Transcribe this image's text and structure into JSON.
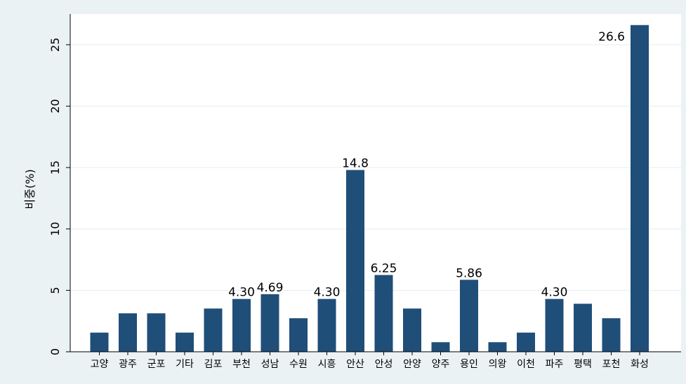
{
  "chart_data": {
    "type": "bar",
    "ylabel": "비중(%)",
    "xlabel": "",
    "title": "",
    "ylim": [
      0,
      27.5
    ],
    "yticks": [
      0,
      5,
      10,
      15,
      20,
      25
    ],
    "grid": true,
    "bar_color": "#1f4e79",
    "categories": [
      "고양",
      "광주",
      "군포",
      "기타",
      "김포",
      "부천",
      "성남",
      "수원",
      "시흥",
      "안산",
      "안성",
      "안양",
      "양주",
      "용인",
      "의왕",
      "이천",
      "파주",
      "평택",
      "포천",
      "화성"
    ],
    "values": [
      1.56,
      3.13,
      3.13,
      1.56,
      3.52,
      4.3,
      4.69,
      2.73,
      4.3,
      14.8,
      6.25,
      3.52,
      0.78,
      5.86,
      0.78,
      1.56,
      4.3,
      3.91,
      2.73,
      26.6
    ],
    "data_labels": [
      "",
      "",
      "",
      "",
      "",
      "4.30",
      "4.69",
      "",
      "4.30",
      "14.8",
      "6.25",
      "",
      "",
      "5.86",
      "",
      "",
      "4.30",
      "",
      "",
      "26.6"
    ]
  }
}
